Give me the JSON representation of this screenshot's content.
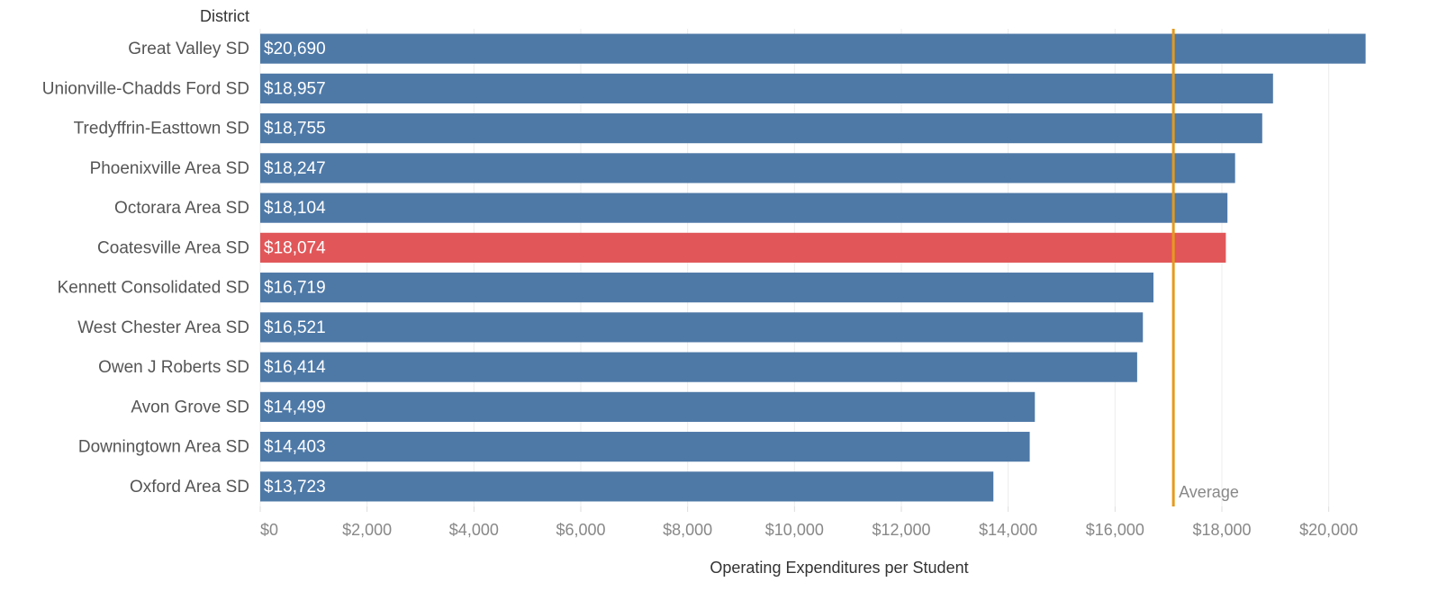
{
  "chart_data": {
    "type": "bar",
    "orientation": "horizontal",
    "y_label": "District",
    "x_label": "Operating Expenditures per Student",
    "categories": [
      "Great Valley SD",
      "Unionville-Chadds Ford SD",
      "Tredyffrin-Easttown SD",
      "Phoenixville Area SD",
      "Octorara Area SD",
      "Coatesville Area SD",
      "Kennett Consolidated SD",
      "West Chester Area SD",
      "Owen J Roberts SD",
      "Avon Grove SD",
      "Downingtown Area SD",
      "Oxford Area SD"
    ],
    "values": [
      20690,
      18957,
      18755,
      18247,
      18104,
      18074,
      16719,
      16521,
      16414,
      14499,
      14403,
      13723
    ],
    "value_labels": [
      "$20,690",
      "$18,957",
      "$18,755",
      "$18,247",
      "$18,104",
      "$18,074",
      "$16,719",
      "$16,521",
      "$16,414",
      "$14,499",
      "$14,403",
      "$13,723"
    ],
    "colors": [
      "#4e79a7",
      "#4e79a7",
      "#4e79a7",
      "#4e79a7",
      "#4e79a7",
      "#e15759",
      "#4e79a7",
      "#4e79a7",
      "#4e79a7",
      "#4e79a7",
      "#4e79a7",
      "#4e79a7"
    ],
    "xlim": [
      0,
      21000
    ],
    "xticks": [
      {
        "value": 0,
        "label": "$0"
      },
      {
        "value": 2000,
        "label": "$2,000"
      },
      {
        "value": 4000,
        "label": "$4,000"
      },
      {
        "value": 6000,
        "label": "$6,000"
      },
      {
        "value": 8000,
        "label": "$8,000"
      },
      {
        "value": 10000,
        "label": "$10,000"
      },
      {
        "value": 12000,
        "label": "$12,000"
      },
      {
        "value": 14000,
        "label": "$14,000"
      },
      {
        "value": 16000,
        "label": "$16,000"
      },
      {
        "value": 18000,
        "label": "$18,000"
      },
      {
        "value": 20000,
        "label": "$20,000"
      }
    ],
    "grid": true,
    "reference_line": {
      "label": "Average",
      "value": 17092,
      "color": "#e59a1e"
    }
  }
}
